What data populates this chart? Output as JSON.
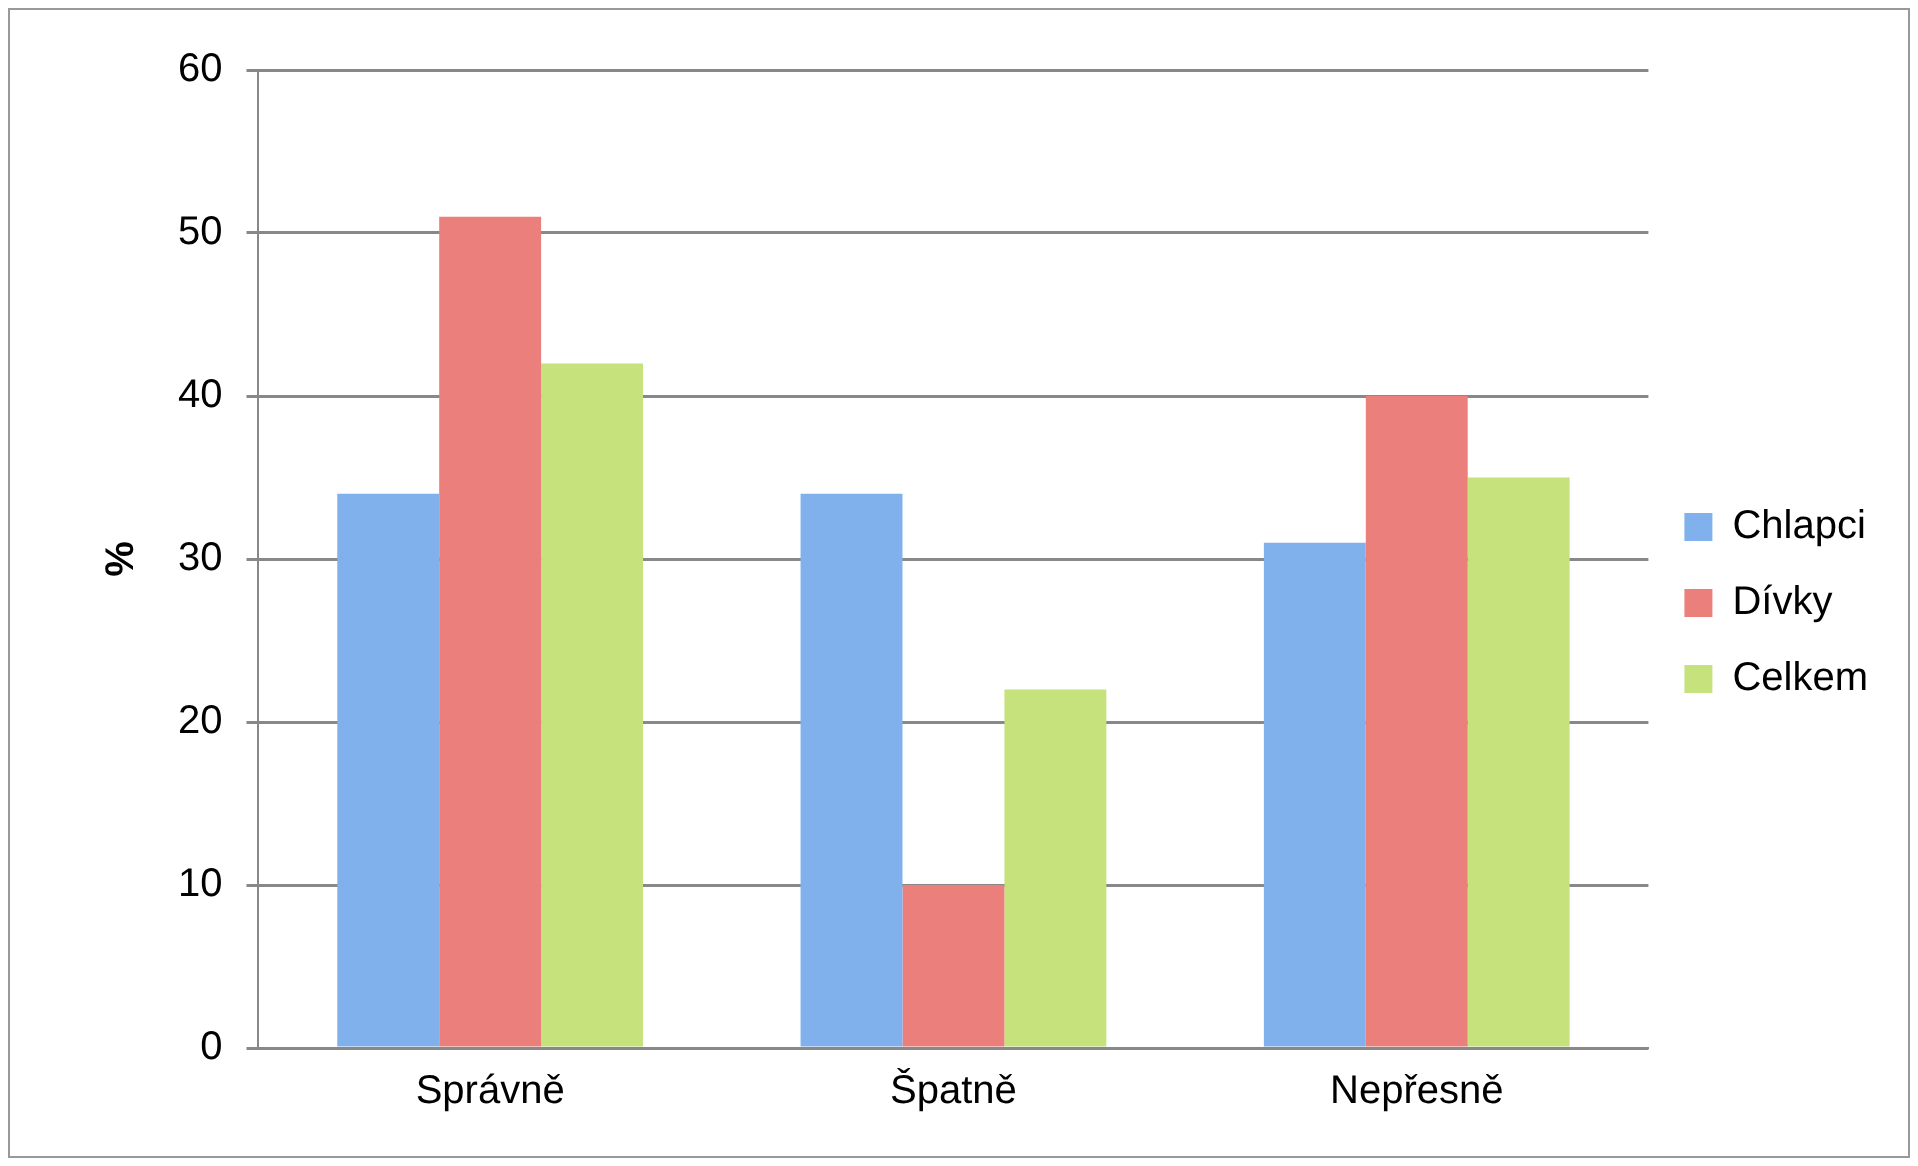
{
  "chart_data": {
    "type": "bar",
    "ylabel": "%",
    "categories": [
      "Správně",
      "Špatně",
      "Nepřesně"
    ],
    "series": [
      {
        "name": "Chlapci",
        "color": "#80b1ec",
        "values": [
          34,
          34,
          31
        ]
      },
      {
        "name": "Dívky",
        "color": "#eb7f7c",
        "values": [
          51,
          10,
          40
        ]
      },
      {
        "name": "Celkem",
        "color": "#c6e27c",
        "values": [
          42,
          22,
          35
        ]
      }
    ],
    "ylim": [
      0,
      60
    ],
    "yticks": [
      0,
      10,
      20,
      30,
      40,
      50,
      60
    ],
    "grid": "y",
    "legend": "right"
  }
}
